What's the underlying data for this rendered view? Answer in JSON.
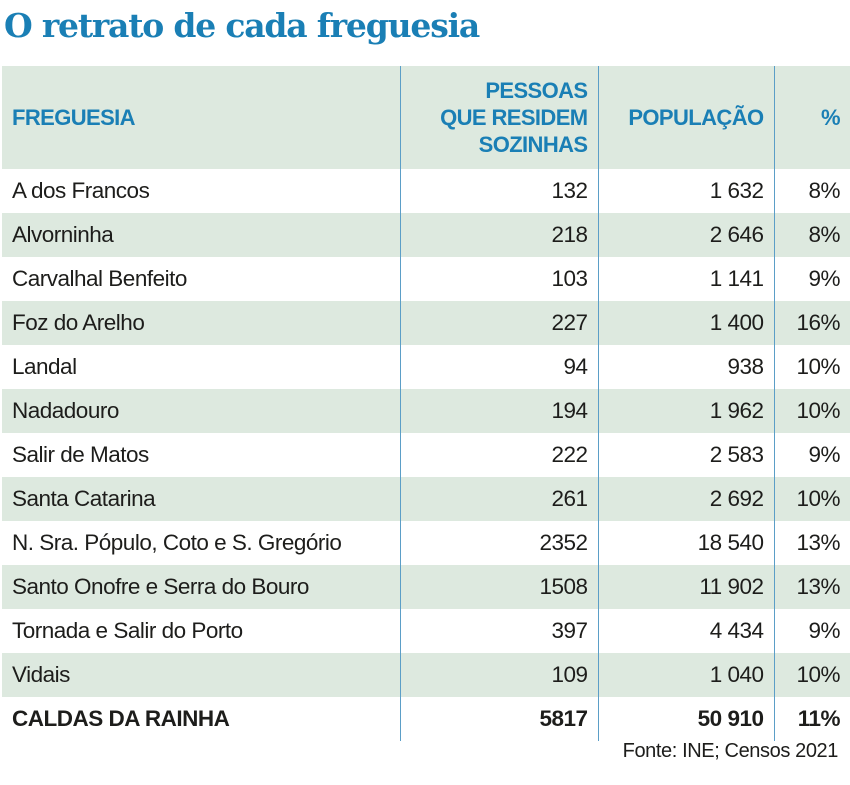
{
  "title": "O retrato de cada freguesia",
  "source": "Fonte: INE; Censos 2021",
  "colors": {
    "accent": "#1a7fb5",
    "row_shade": "#dde9df",
    "divider": "#5b9ec7",
    "text": "#1d1d1b"
  },
  "chart_data": {
    "type": "table",
    "title": "O retrato de cada freguesia",
    "columns": [
      "FREGUESIA",
      "PESSOAS QUE RESIDEM SOZINHAS",
      "POPULAÇÃO",
      "%"
    ],
    "column_lines": {
      "freguesia": [
        "FREGUESIA"
      ],
      "pessoas": [
        "PESSOAS",
        "QUE RESIDEM",
        "SOZINHAS"
      ],
      "populacao": [
        "POPULAÇÃO"
      ],
      "percent": [
        "%"
      ]
    },
    "rows": [
      {
        "freguesia": "A dos Francos",
        "pessoas": "132",
        "populacao": "1 632",
        "percent": "8%"
      },
      {
        "freguesia": "Alvorninha",
        "pessoas": "218",
        "populacao": "2 646",
        "percent": "8%"
      },
      {
        "freguesia": "Carvalhal Benfeito",
        "pessoas": "103",
        "populacao": "1 141",
        "percent": "9%"
      },
      {
        "freguesia": "Foz do Arelho",
        "pessoas": "227",
        "populacao": "1 400",
        "percent": "16%"
      },
      {
        "freguesia": "Landal",
        "pessoas": "94",
        "populacao": "938",
        "percent": "10%"
      },
      {
        "freguesia": "Nadadouro",
        "pessoas": "194",
        "populacao": "1 962",
        "percent": "10%"
      },
      {
        "freguesia": "Salir de Matos",
        "pessoas": "222",
        "populacao": "2 583",
        "percent": "9%"
      },
      {
        "freguesia": "Santa Catarina",
        "pessoas": "261",
        "populacao": "2 692",
        "percent": "10%"
      },
      {
        "freguesia": "N. Sra. Pópulo, Coto e S. Gregório",
        "pessoas": "2352",
        "populacao": "18 540",
        "percent": "13%"
      },
      {
        "freguesia": "Santo Onofre e Serra do Bouro",
        "pessoas": "1508",
        "populacao": "11 902",
        "percent": "13%"
      },
      {
        "freguesia": "Tornada e Salir do Porto",
        "pessoas": "397",
        "populacao": "4 434",
        "percent": "9%"
      },
      {
        "freguesia": "Vidais",
        "pessoas": "109",
        "populacao": "1 040",
        "percent": "10%"
      },
      {
        "freguesia": "CALDAS DA RAINHA",
        "pessoas": "5817",
        "populacao": "50 910",
        "percent": "11%"
      }
    ]
  }
}
